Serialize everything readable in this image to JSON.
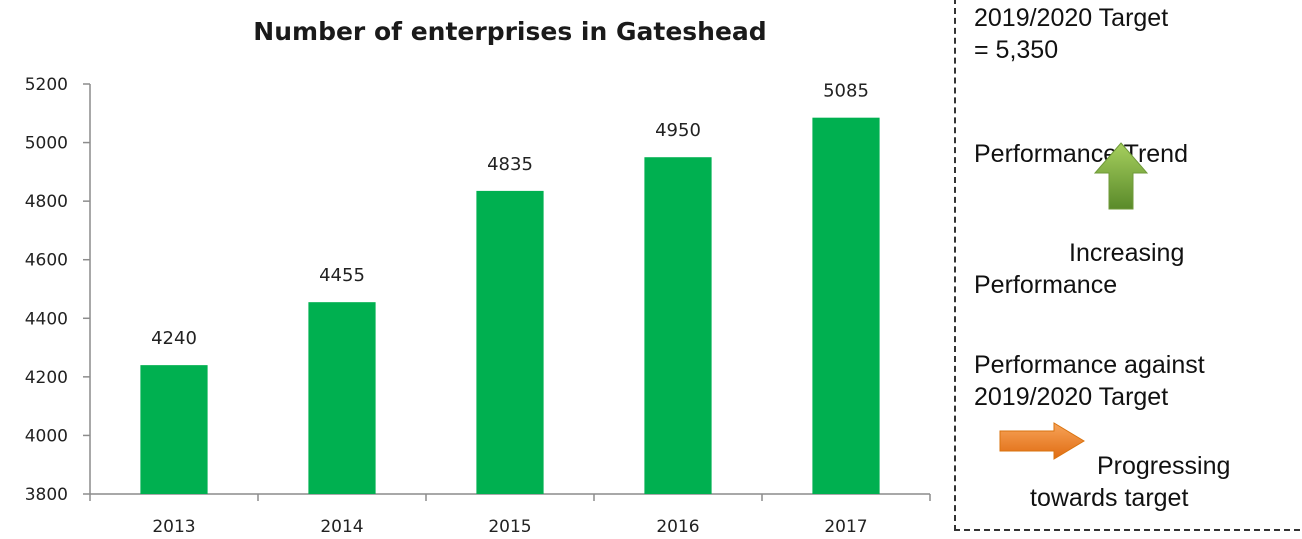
{
  "chart_data": {
    "type": "bar",
    "title": "Number of enterprises in Gateshead",
    "categories": [
      "2013",
      "2014",
      "2015",
      "2016",
      "2017"
    ],
    "values": [
      4240,
      4455,
      4835,
      4950,
      5085
    ],
    "ylim": [
      3800,
      5200
    ],
    "yticks": [
      "3800",
      "4000",
      "4200",
      "4400",
      "4600",
      "4800",
      "5000",
      "5200"
    ],
    "data_labels": [
      "4240",
      "4455",
      "4835",
      "4950",
      "5085"
    ],
    "bar_color": "#00b050",
    "grid": false,
    "legend": "none"
  },
  "panel": {
    "target_line1": "2019/2020 Target",
    "target_line2": "= 5,350",
    "trend_heading": "Performance Trend",
    "trend_icon": "up-arrow-icon",
    "trend_status_line1": "Increasing",
    "trend_status_line2": "Performance",
    "against_line1": "Performance against",
    "against_line2": "2019/2020 Target",
    "against_icon": "right-arrow-icon",
    "against_status_line1": "Progressing",
    "against_status_line2": "towards target",
    "up_arrow_color": "#77a33a",
    "right_arrow_color": "#ef7f1a"
  }
}
